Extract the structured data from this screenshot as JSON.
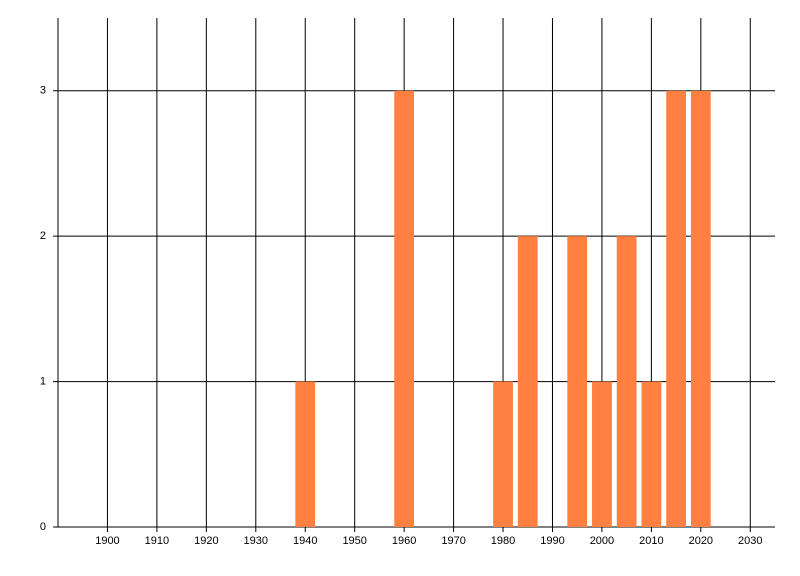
{
  "chart_data": {
    "type": "bar",
    "x": [
      1940,
      1960,
      1980,
      1985,
      1995,
      2000,
      2005,
      2010,
      2015,
      2020
    ],
    "values": [
      1,
      3,
      1,
      2,
      2,
      1,
      2,
      1,
      3,
      3
    ],
    "color": "#ff8040",
    "xlim": [
      1890,
      2035
    ],
    "xticks": [
      1900,
      1910,
      1920,
      1930,
      1940,
      1950,
      1960,
      1970,
      1980,
      1990,
      2000,
      2010,
      2020,
      2030
    ],
    "ylim": [
      0,
      3.5
    ],
    "yticks": [
      0,
      1,
      2,
      3
    ],
    "grid": true
  }
}
